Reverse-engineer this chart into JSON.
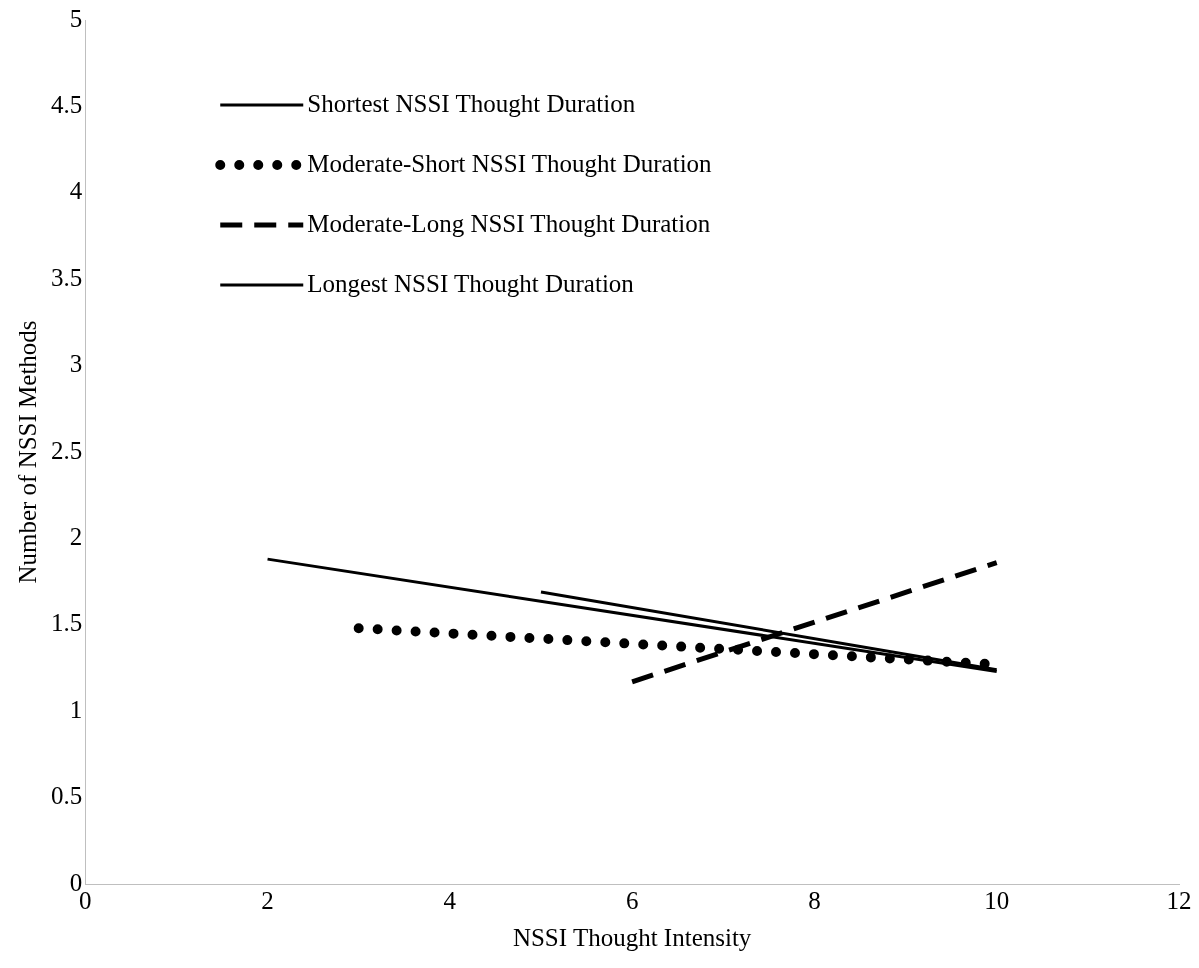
{
  "chart_data": {
    "type": "line",
    "xlabel": "NSSI Thought Intensity",
    "ylabel": "Number of NSSI Methods",
    "xlim": [
      0,
      12
    ],
    "xticks": [
      0,
      2,
      4,
      6,
      8,
      10,
      12
    ],
    "ylim": [
      0,
      5
    ],
    "yticks": [
      0,
      0.5,
      1,
      1.5,
      2,
      2.5,
      3,
      3.5,
      4,
      4.5,
      5
    ],
    "grid": false,
    "legend": "top left",
    "marker": "none",
    "series": [
      {
        "name": "Shortest NSSI Thought Duration",
        "color": "#000000",
        "line_style": "solid",
        "x": [
          2,
          10
        ],
        "values": [
          1.88,
          1.23
        ]
      },
      {
        "name": "Moderate-Short NSSI Thought Duration",
        "color": "#000000",
        "line_style": "dotted",
        "x": [
          3,
          10
        ],
        "values": [
          1.48,
          1.27
        ]
      },
      {
        "name": "Moderate-Long NSSI Thought Duration",
        "color": "#000000",
        "line_style": "dashed",
        "x": [
          6,
          10
        ],
        "values": [
          1.17,
          1.86
        ]
      },
      {
        "name": "Longest NSSI Thought Duration",
        "color": "#000000",
        "line_style": "solid",
        "x": [
          5,
          10
        ],
        "values": [
          1.69,
          1.24
        ]
      }
    ]
  }
}
